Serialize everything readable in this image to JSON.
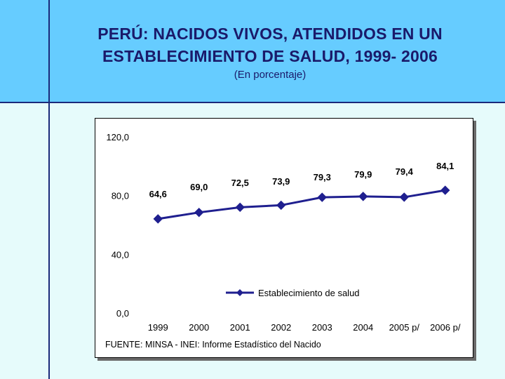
{
  "header": {
    "title_line1": "PERÚ: NACIDOS VIVOS,  ATENDIDOS EN UN",
    "title_line2": "ESTABLECIMIENTO DE SALUD, 1999- 2006",
    "subtitle": "(En porcentaje)"
  },
  "colors": {
    "header_bg": "#66ccff",
    "page_bg": "#e6fbfb",
    "series": "#1f1f8f",
    "rule": "#1a2a7a"
  },
  "chart_data": {
    "type": "line",
    "title": "PERÚ: NACIDOS VIVOS,  ATENDIDOS EN UN ESTABLECIMIENTO DE SALUD, 1999- 2006",
    "subtitle": "(En porcentaje)",
    "categories": [
      "1999",
      "2000",
      "2001",
      "2002",
      "2003",
      "2004",
      "2005 p/",
      "2006 p/"
    ],
    "series": [
      {
        "name": "Establecimiento de salud",
        "values": [
          64.6,
          69.0,
          72.5,
          73.9,
          79.3,
          79.9,
          79.4,
          84.1
        ],
        "labels": [
          "64,6",
          "69,0",
          "72,5",
          "73,9",
          "79,3",
          "79,9",
          "79,4",
          "84,1"
        ]
      }
    ],
    "yticks": [
      0,
      40,
      80,
      120
    ],
    "ytick_labels": [
      "0,0",
      "40,0",
      "80,0",
      "120,0"
    ],
    "ylim": [
      0,
      120
    ],
    "xlabel": "",
    "ylabel": "",
    "legend_position": "lower-middle",
    "grid": false,
    "source": "FUENTE:  MINSA - INEI: Informe Estadístico del Nacido"
  }
}
